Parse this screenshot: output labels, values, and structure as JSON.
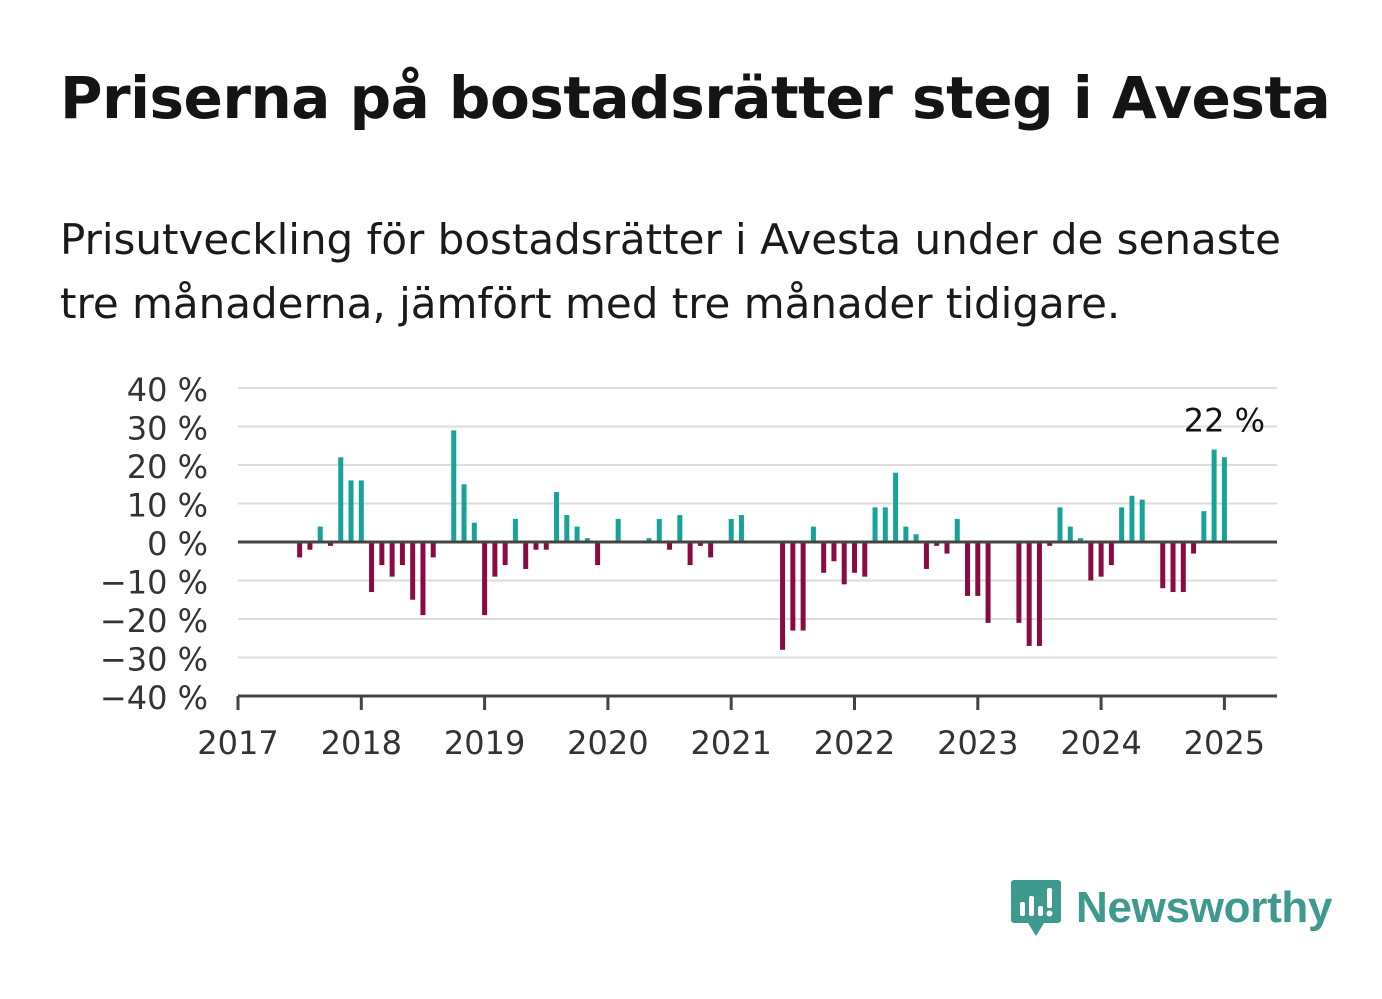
{
  "title": "Priserna på bostadsrätter steg i Avesta",
  "subtitle": "Prisutveckling för bostadsrätter i Avesta under de senaste tre månaderna, jämfört med tre månader tidigare.",
  "brand": {
    "name": "Newsworthy",
    "icon": "newsworthy-logo-icon",
    "color": "#3e9a8f"
  },
  "colors": {
    "positive": "#17a398",
    "negative": "#8a0b43",
    "grid": "#dddddd",
    "axis": "#444444"
  },
  "chart_data": {
    "type": "bar",
    "title": "Priserna på bostadsrätter steg i Avesta",
    "subtitle": "Prisutveckling för bostadsrätter i Avesta under de senaste tre månaderna, jämfört med tre månader tidigare.",
    "xlabel": "",
    "ylabel": "",
    "xlim": [
      "2017-01",
      "2025-05"
    ],
    "ylim": [
      -40,
      40
    ],
    "y_ticks": [
      40,
      30,
      20,
      10,
      0,
      -10,
      -20,
      -30,
      -40
    ],
    "y_tick_labels": [
      "40 %",
      "30 %",
      "20 %",
      "10 %",
      "0 %",
      "−10 %",
      "−20 %",
      "−30 %",
      "−40 %"
    ],
    "x_ticks": [
      "2017",
      "2018",
      "2019",
      "2020",
      "2021",
      "2022",
      "2023",
      "2024",
      "2025"
    ],
    "grid": true,
    "annotation": {
      "x": "2025-01",
      "label": "22 %"
    },
    "series": [
      {
        "unit": "%",
        "points": [
          [
            "2017-07",
            -4
          ],
          [
            "2017-08",
            -2
          ],
          [
            "2017-09",
            4
          ],
          [
            "2017-10",
            -1
          ],
          [
            "2017-11",
            22
          ],
          [
            "2017-12",
            16
          ],
          [
            "2018-01",
            16
          ],
          [
            "2018-02",
            -13
          ],
          [
            "2018-03",
            -6
          ],
          [
            "2018-04",
            -9
          ],
          [
            "2018-05",
            -6
          ],
          [
            "2018-06",
            -15
          ],
          [
            "2018-07",
            -19
          ],
          [
            "2018-08",
            -4
          ],
          [
            "2018-10",
            29
          ],
          [
            "2018-11",
            15
          ],
          [
            "2018-12",
            5
          ],
          [
            "2019-01",
            -19
          ],
          [
            "2019-02",
            -9
          ],
          [
            "2019-03",
            -6
          ],
          [
            "2019-04",
            6
          ],
          [
            "2019-05",
            -7
          ],
          [
            "2019-06",
            -2
          ],
          [
            "2019-07",
            -2
          ],
          [
            "2019-08",
            13
          ],
          [
            "2019-09",
            7
          ],
          [
            "2019-10",
            4
          ],
          [
            "2019-11",
            1
          ],
          [
            "2019-12",
            -6
          ],
          [
            "2020-02",
            6
          ],
          [
            "2020-05",
            1
          ],
          [
            "2020-06",
            6
          ],
          [
            "2020-07",
            -2
          ],
          [
            "2020-08",
            7
          ],
          [
            "2020-09",
            -6
          ],
          [
            "2020-10",
            -1
          ],
          [
            "2020-11",
            -4
          ],
          [
            "2021-01",
            6
          ],
          [
            "2021-02",
            7
          ],
          [
            "2021-06",
            -28
          ],
          [
            "2021-07",
            -23
          ],
          [
            "2021-08",
            -23
          ],
          [
            "2021-09",
            4
          ],
          [
            "2021-10",
            -8
          ],
          [
            "2021-11",
            -5
          ],
          [
            "2021-12",
            -11
          ],
          [
            "2022-01",
            -8
          ],
          [
            "2022-02",
            -9
          ],
          [
            "2022-03",
            9
          ],
          [
            "2022-04",
            9
          ],
          [
            "2022-05",
            18
          ],
          [
            "2022-06",
            4
          ],
          [
            "2022-07",
            2
          ],
          [
            "2022-08",
            -7
          ],
          [
            "2022-09",
            -1
          ],
          [
            "2022-10",
            -3
          ],
          [
            "2022-11",
            6
          ],
          [
            "2022-12",
            -14
          ],
          [
            "2023-01",
            -14
          ],
          [
            "2023-02",
            -21
          ],
          [
            "2023-05",
            -21
          ],
          [
            "2023-06",
            -27
          ],
          [
            "2023-07",
            -27
          ],
          [
            "2023-08",
            -1
          ],
          [
            "2023-09",
            9
          ],
          [
            "2023-10",
            4
          ],
          [
            "2023-11",
            1
          ],
          [
            "2023-12",
            -10
          ],
          [
            "2024-01",
            -9
          ],
          [
            "2024-02",
            -6
          ],
          [
            "2024-03",
            9
          ],
          [
            "2024-04",
            12
          ],
          [
            "2024-05",
            11
          ],
          [
            "2024-07",
            -12
          ],
          [
            "2024-08",
            -13
          ],
          [
            "2024-09",
            -13
          ],
          [
            "2024-10",
            -3
          ],
          [
            "2024-11",
            8
          ],
          [
            "2024-12",
            24
          ],
          [
            "2025-01",
            22
          ]
        ]
      }
    ]
  }
}
